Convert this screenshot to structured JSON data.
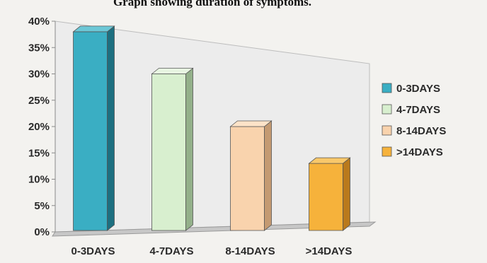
{
  "chart_data": {
    "type": "bar",
    "title": "Graph showing duration of symptoms.",
    "categories": [
      "0-3DAYS",
      "4-7DAYS",
      "8-14DAYS",
      ">14DAYS"
    ],
    "values": [
      38,
      30,
      20,
      13
    ],
    "y_ticks": [
      "0%",
      "5%",
      "10%",
      "15%",
      "20%",
      "25%",
      "30%",
      "35%",
      "40%"
    ],
    "ylim": [
      0,
      40
    ],
    "y_unit": "%",
    "grid": false,
    "legend_position": "right",
    "legend": [
      "0-3DAYS",
      "4-7DAYS",
      "8-14DAYS",
      ">14DAYS"
    ],
    "colors": {
      "front": [
        "#3aaec3",
        "#d8efcf",
        "#f9d3ad",
        "#f6b23b"
      ],
      "side": [
        "#1d6f80",
        "#93b08a",
        "#c49a72",
        "#b9791c"
      ],
      "top": [
        "#6cc7d6",
        "#e8f6e2",
        "#fde3c8",
        "#f9c86a"
      ]
    }
  }
}
